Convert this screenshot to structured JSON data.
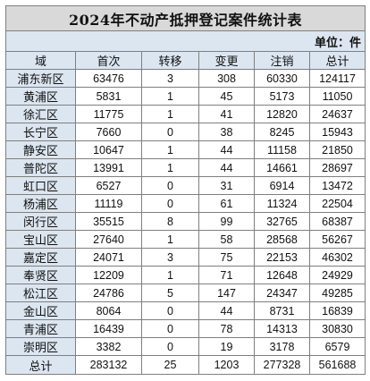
{
  "title": "2024年不动产抵押登记案件统计表",
  "unit_label": "单位：件",
  "headers": [
    "域",
    "首次",
    "转移",
    "变更",
    "注销",
    "总计"
  ],
  "rows": [
    {
      "region": "浦东新区",
      "first": "63476",
      "transfer": "3",
      "change": "308",
      "cancel": "60330",
      "total": "124117"
    },
    {
      "region": "黄浦区",
      "first": "5831",
      "transfer": "1",
      "change": "45",
      "cancel": "5173",
      "total": "11050"
    },
    {
      "region": "徐汇区",
      "first": "11775",
      "transfer": "1",
      "change": "41",
      "cancel": "12820",
      "total": "24637"
    },
    {
      "region": "长宁区",
      "first": "7660",
      "transfer": "0",
      "change": "38",
      "cancel": "8245",
      "total": "15943"
    },
    {
      "region": "静安区",
      "first": "10647",
      "transfer": "1",
      "change": "44",
      "cancel": "11158",
      "total": "21850"
    },
    {
      "region": "普陀区",
      "first": "13991",
      "transfer": "1",
      "change": "44",
      "cancel": "14661",
      "total": "28697"
    },
    {
      "region": "虹口区",
      "first": "6527",
      "transfer": "0",
      "change": "31",
      "cancel": "6914",
      "total": "13472"
    },
    {
      "region": "杨浦区",
      "first": "11119",
      "transfer": "0",
      "change": "61",
      "cancel": "11324",
      "total": "22504"
    },
    {
      "region": "闵行区",
      "first": "35515",
      "transfer": "8",
      "change": "99",
      "cancel": "32765",
      "total": "68387"
    },
    {
      "region": "宝山区",
      "first": "27640",
      "transfer": "1",
      "change": "58",
      "cancel": "28568",
      "total": "56267"
    },
    {
      "region": "嘉定区",
      "first": "24071",
      "transfer": "3",
      "change": "75",
      "cancel": "22153",
      "total": "46302"
    },
    {
      "region": "奉贤区",
      "first": "12209",
      "transfer": "1",
      "change": "71",
      "cancel": "12648",
      "total": "24929"
    },
    {
      "region": "松江区",
      "first": "24786",
      "transfer": "5",
      "change": "147",
      "cancel": "24347",
      "total": "49285"
    },
    {
      "region": "金山区",
      "first": "8064",
      "transfer": "0",
      "change": "44",
      "cancel": "8731",
      "total": "16839"
    },
    {
      "region": "青浦区",
      "first": "16439",
      "transfer": "0",
      "change": "78",
      "cancel": "14313",
      "total": "30830"
    },
    {
      "region": "崇明区",
      "first": "3382",
      "transfer": "0",
      "change": "19",
      "cancel": "3178",
      "total": "6579"
    }
  ],
  "total_row": {
    "region": "总计",
    "first": "283132",
    "transfer": "25",
    "change": "1203",
    "cancel": "277328",
    "total": "561688"
  },
  "colors": {
    "title_bg": "#d9d9d9",
    "header_bg": "#dce6f1",
    "grid_line": "#7f7f7f"
  }
}
